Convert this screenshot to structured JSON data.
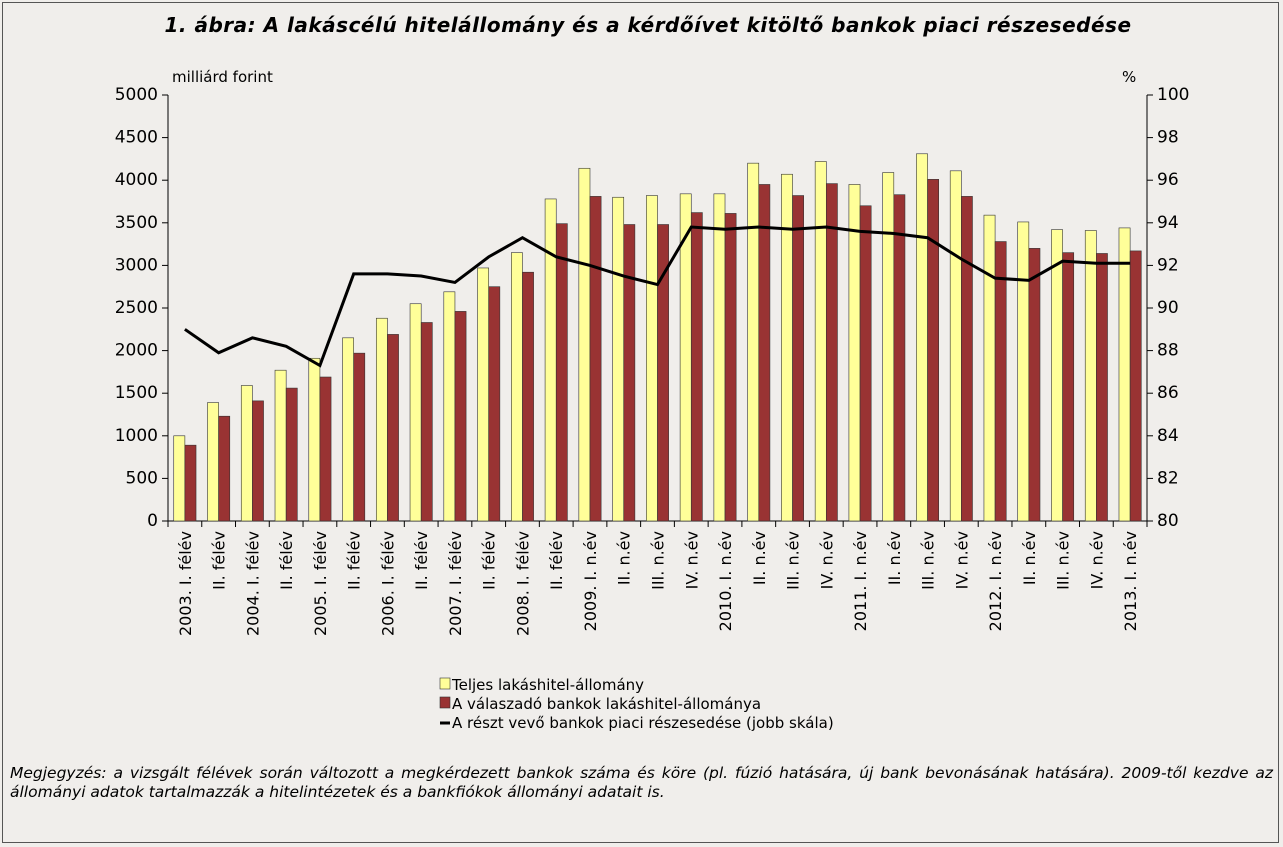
{
  "chart_data": {
    "type": "bar",
    "title": "1. ábra: A lakáscélú hitelállomány és a kérdőívet kitöltő bankok piaci részesedése",
    "y_label": "milliárd forint",
    "y2_label": "%",
    "categories": [
      "2003. I. félév",
      "II. félév",
      "2004. I. félév",
      "II. félév",
      "2005. I. félév",
      "II. félév",
      "2006. I. félév",
      "II. félév",
      "2007. I. félév",
      "II. félév",
      "2008. I. félév",
      "II. félév",
      "2009. I. n.év",
      "II. n.év",
      "III. n.év",
      "IV. n.év",
      "2010. I. n.év",
      "II. n.év",
      "III. n.év",
      "IV. n.év",
      "2011. I. n.év",
      "II. n.év",
      "III. n.év",
      "IV. n.év",
      "2012. I. n.év",
      "II. n.év",
      "III. n.év",
      "IV. n.év",
      "2013. I. n.év"
    ],
    "series": [
      {
        "name": "Teljes lakáshitel-állomány",
        "type": "bar",
        "color": "#ffff99",
        "values": [
          1000,
          1390,
          1590,
          1770,
          1910,
          2150,
          2380,
          2550,
          2690,
          2970,
          3150,
          3780,
          4140,
          3800,
          3820,
          3840,
          3840,
          4200,
          4070,
          4220,
          3950,
          4090,
          4310,
          4110,
          3590,
          3510,
          3420,
          3410,
          3440
        ]
      },
      {
        "name": "A válaszadó bankok lakáshitel-állománya",
        "type": "bar",
        "color": "#993333",
        "values": [
          890,
          1230,
          1410,
          1560,
          1690,
          1970,
          2190,
          2330,
          2460,
          2750,
          2920,
          3490,
          3810,
          3480,
          3480,
          3620,
          3610,
          3950,
          3820,
          3960,
          3700,
          3830,
          4010,
          3810,
          3280,
          3200,
          3150,
          3140,
          3170
        ]
      },
      {
        "name": "A részt vevő bankok piaci részesedése (jobb skála)",
        "type": "line",
        "axis": "y2",
        "color": "#000000",
        "values": [
          89.0,
          87.9,
          88.6,
          88.2,
          87.3,
          91.6,
          91.6,
          91.5,
          91.2,
          92.4,
          93.3,
          92.4,
          92.0,
          91.5,
          91.1,
          93.8,
          93.7,
          93.8,
          93.7,
          93.8,
          93.6,
          93.5,
          93.3,
          92.3,
          91.4,
          91.3,
          92.2,
          92.1,
          92.1
        ]
      }
    ],
    "ylim": [
      0,
      5000
    ],
    "yticks": [
      0,
      500,
      1000,
      1500,
      2000,
      2500,
      3000,
      3500,
      4000,
      4500,
      5000
    ],
    "y2lim": [
      80,
      100
    ],
    "y2ticks": [
      80,
      82,
      84,
      86,
      88,
      90,
      92,
      94,
      96,
      98,
      100
    ],
    "grid": false,
    "note": "Megjegyzés: a vizsgált félévek során változott a megkérdezett bankok száma és köre (pl. fúzió hatására, új bank bevonásának hatására). 2009-től kezdve az állományi adatok tartalmazzák a hitelintézetek és a bankfiókok állományi adatait is."
  }
}
